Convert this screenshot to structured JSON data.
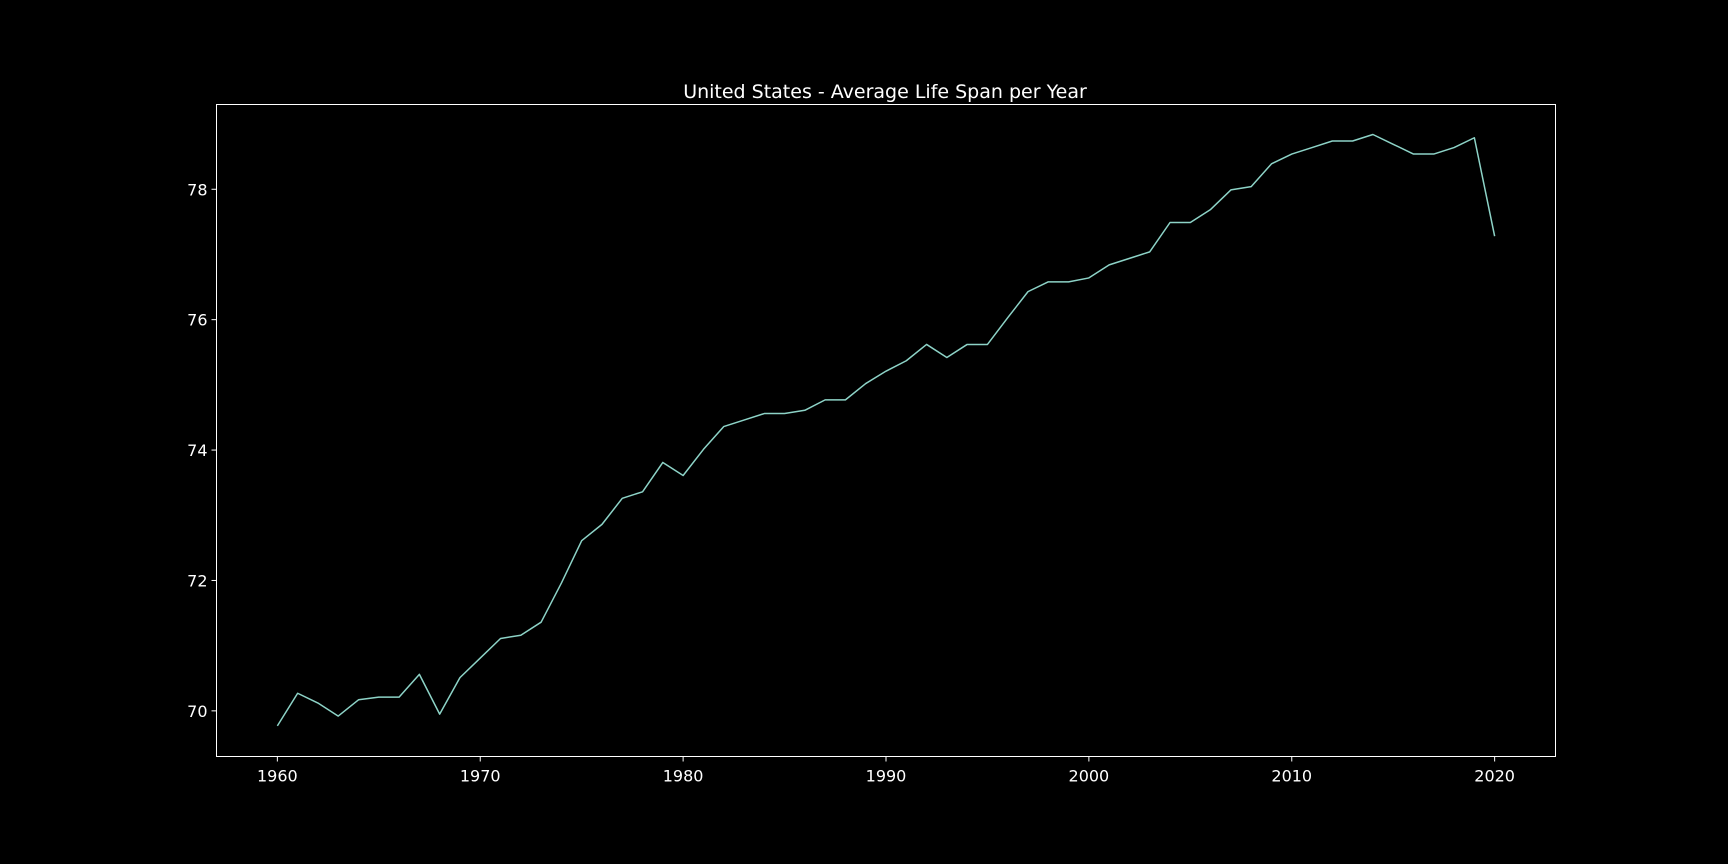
{
  "chart_data": {
    "type": "line",
    "title": "United States - Average Life Span per Year",
    "xlabel": "",
    "ylabel": "",
    "xlim": [
      1957,
      2023
    ],
    "ylim": [
      69.3,
      79.3
    ],
    "xticks": [
      1960,
      1970,
      1980,
      1990,
      2000,
      2010,
      2020
    ],
    "yticks": [
      70,
      72,
      74,
      76,
      78
    ],
    "grid": false,
    "legend": "none",
    "colors": {
      "background": "#000000",
      "line": "#8dd3c7",
      "axes": "#ffffff",
      "text": "#ffffff"
    },
    "series": [
      {
        "x": [
          1960,
          1961,
          1962,
          1963,
          1964,
          1965,
          1966,
          1967,
          1968,
          1969,
          1970,
          1971,
          1972,
          1973,
          1974,
          1975,
          1976,
          1977,
          1978,
          1979,
          1980,
          1981,
          1982,
          1983,
          1984,
          1985,
          1986,
          1987,
          1988,
          1989,
          1990,
          1991,
          1992,
          1993,
          1994,
          1995,
          1996,
          1997,
          1998,
          1999,
          2000,
          2001,
          2002,
          2003,
          2004,
          2005,
          2006,
          2007,
          2008,
          2009,
          2010,
          2011,
          2012,
          2013,
          2014,
          2015,
          2016,
          2017,
          2018,
          2019,
          2020
        ],
        "values": [
          69.77,
          70.27,
          70.12,
          69.92,
          70.17,
          70.21,
          70.21,
          70.56,
          69.95,
          70.51,
          70.81,
          71.11,
          71.16,
          71.36,
          71.96,
          72.61,
          72.86,
          73.26,
          73.36,
          73.81,
          73.61,
          74.01,
          74.36,
          74.46,
          74.56,
          74.56,
          74.61,
          74.77,
          74.77,
          75.02,
          75.21,
          75.37,
          75.62,
          75.42,
          75.62,
          75.62,
          76.03,
          76.43,
          76.58,
          76.58,
          76.64,
          76.84,
          76.94,
          77.04,
          77.49,
          77.49,
          77.69,
          77.99,
          78.04,
          78.39,
          78.54,
          78.64,
          78.74,
          78.74,
          78.84,
          78.69,
          78.54,
          78.54,
          78.64,
          78.79,
          77.28
        ]
      }
    ]
  }
}
